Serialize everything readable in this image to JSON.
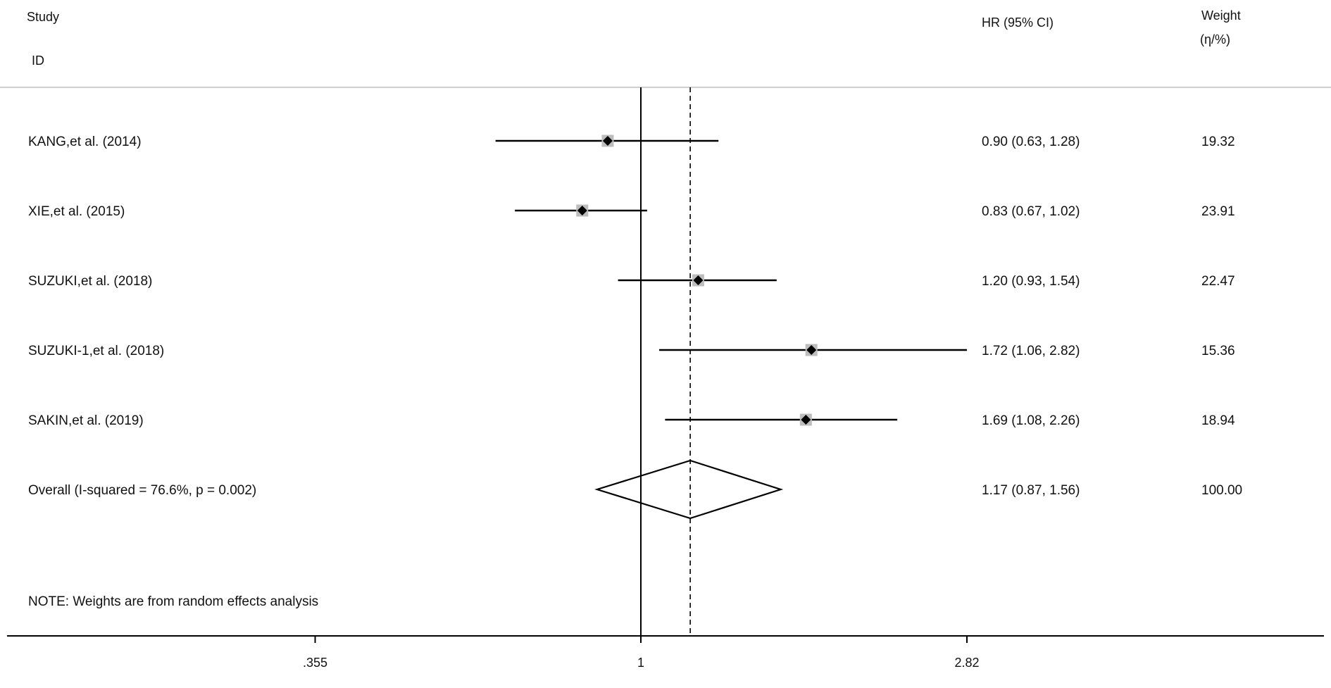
{
  "chart_data": {
    "type": "forest",
    "header": {
      "study": "Study",
      "id": "ID",
      "hr": "HR (95% CI)",
      "weight": "Weight",
      "weight_unit": "(η/%)"
    },
    "studies": [
      {
        "label": "KANG,et al. (2014)",
        "hr": 0.9,
        "lo": 0.63,
        "hi": 1.28,
        "ci_text": "0.90 (0.63, 1.28)",
        "weight": "19.32"
      },
      {
        "label": "XIE,et al. (2015)",
        "hr": 0.83,
        "lo": 0.67,
        "hi": 1.02,
        "ci_text": "0.83 (0.67, 1.02)",
        "weight": "23.91"
      },
      {
        "label": "SUZUKI,et al.  (2018)",
        "hr": 1.2,
        "lo": 0.93,
        "hi": 1.54,
        "ci_text": "1.20 (0.93, 1.54)",
        "weight": "22.47"
      },
      {
        "label": "SUZUKI-1,et al.  (2018)",
        "hr": 1.72,
        "lo": 1.06,
        "hi": 2.82,
        "ci_text": "1.72 (1.06, 2.82)",
        "weight": "15.36"
      },
      {
        "label": "SAKIN,et al. (2019)",
        "hr": 1.69,
        "lo": 1.08,
        "hi": 2.26,
        "ci_text": "1.69 (1.08, 2.26)",
        "weight": "18.94"
      }
    ],
    "overall": {
      "label": "Overall  (I-squared = 76.6%, p = 0.002)",
      "hr": 1.17,
      "lo": 0.87,
      "hi": 1.56,
      "ci_text": "1.17 (0.87, 1.56)",
      "weight": "100.00"
    },
    "note": "NOTE: Weights are from random effects analysis",
    "x_scale": "log",
    "x_ticks": [
      {
        "value": 0.355,
        "label": ".355"
      },
      {
        "value": 1,
        "label": "1"
      },
      {
        "value": 2.82,
        "label": "2.82"
      }
    ],
    "null_line": 1,
    "colors": {
      "line": "#000000",
      "box": "#bdbdbd",
      "separator": "#cfcfcf"
    }
  }
}
